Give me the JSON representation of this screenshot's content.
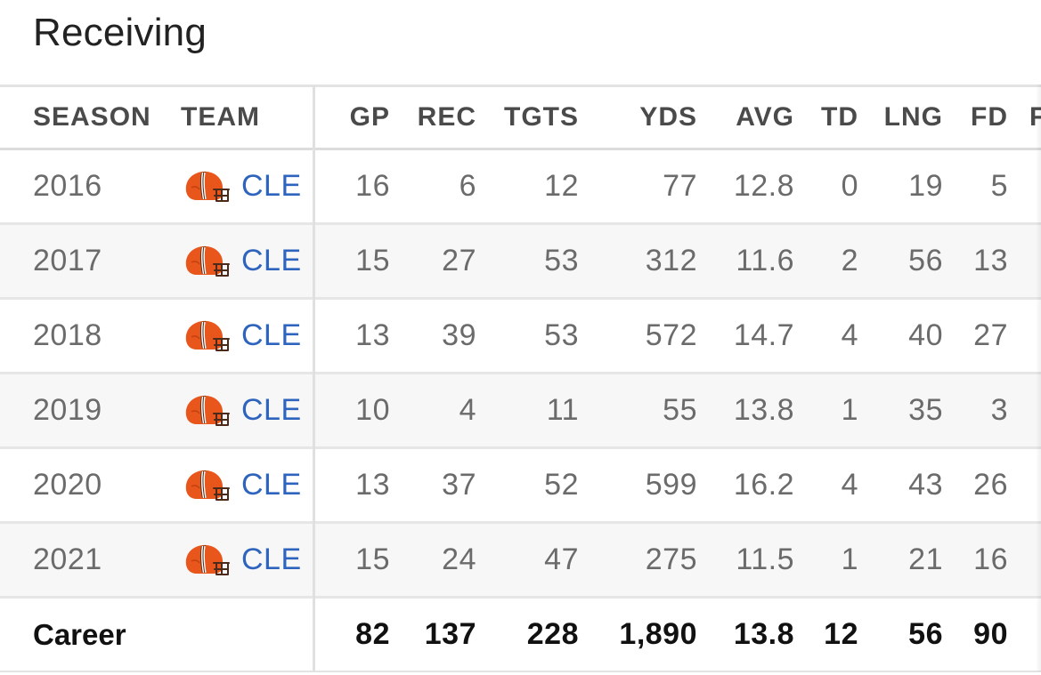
{
  "section": {
    "title": "Receiving"
  },
  "columns": {
    "season": "SEASON",
    "team": "TEAM",
    "gp": "GP",
    "rec": "REC",
    "tgts": "TGTS",
    "yds": "YDS",
    "avg": "AVG",
    "td": "TD",
    "lng": "LNG",
    "fd": "FD",
    "cut": "F"
  },
  "rows": [
    {
      "season": "2016",
      "team": "CLE",
      "gp": "16",
      "rec": "6",
      "tgts": "12",
      "yds": "77",
      "avg": "12.8",
      "td": "0",
      "lng": "19",
      "fd": "5"
    },
    {
      "season": "2017",
      "team": "CLE",
      "gp": "15",
      "rec": "27",
      "tgts": "53",
      "yds": "312",
      "avg": "11.6",
      "td": "2",
      "lng": "56",
      "fd": "13"
    },
    {
      "season": "2018",
      "team": "CLE",
      "gp": "13",
      "rec": "39",
      "tgts": "53",
      "yds": "572",
      "avg": "14.7",
      "td": "4",
      "lng": "40",
      "fd": "27"
    },
    {
      "season": "2019",
      "team": "CLE",
      "gp": "10",
      "rec": "4",
      "tgts": "11",
      "yds": "55",
      "avg": "13.8",
      "td": "1",
      "lng": "35",
      "fd": "3"
    },
    {
      "season": "2020",
      "team": "CLE",
      "gp": "13",
      "rec": "37",
      "tgts": "52",
      "yds": "599",
      "avg": "16.2",
      "td": "4",
      "lng": "43",
      "fd": "26"
    },
    {
      "season": "2021",
      "team": "CLE",
      "gp": "15",
      "rec": "24",
      "tgts": "47",
      "yds": "275",
      "avg": "11.5",
      "td": "1",
      "lng": "21",
      "fd": "16"
    }
  ],
  "career": {
    "label": "Career",
    "gp": "82",
    "rec": "137",
    "tgts": "228",
    "yds": "1,890",
    "avg": "13.8",
    "td": "12",
    "lng": "56",
    "fd": "90"
  },
  "colors": {
    "team_link": "#2e64bd",
    "helmet_orange": "#e8561c",
    "helmet_brown": "#4b2a1a"
  },
  "icons": {
    "team_logo": "cleveland-browns-helmet-icon"
  }
}
